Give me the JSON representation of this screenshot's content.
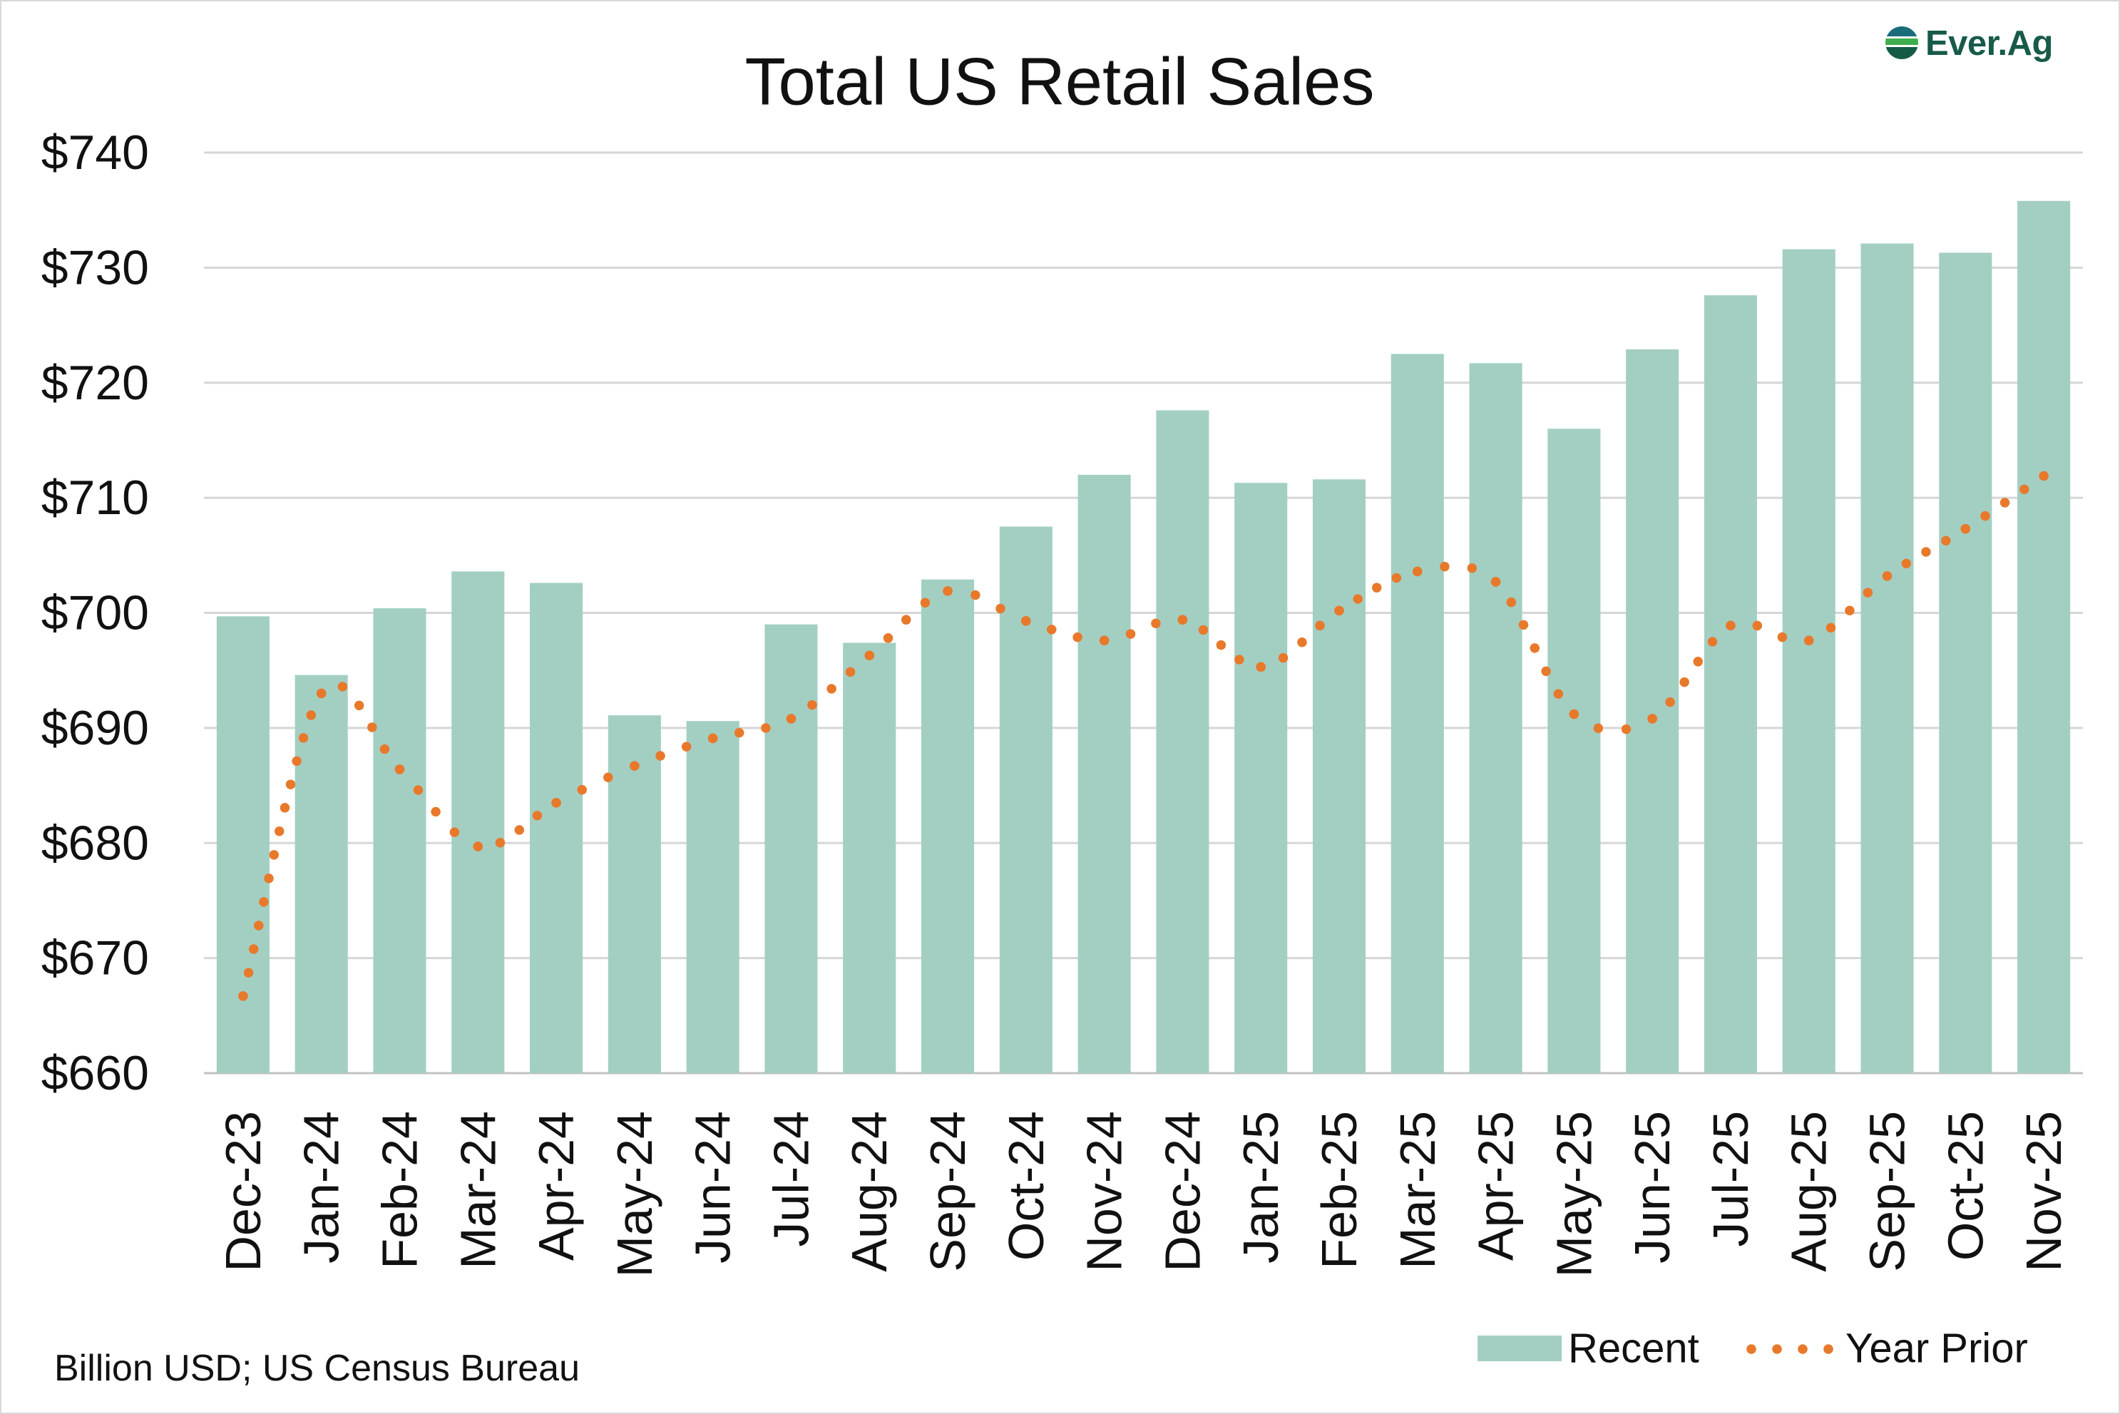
{
  "logo": {
    "text": "Ever.Ag",
    "icon": "ever-ag-logo-icon",
    "color": "#175a4a"
  },
  "footer": {
    "note": "Billion USD; US Census Bureau"
  },
  "chart_data": {
    "type": "bar",
    "title": "Total US Retail Sales",
    "categories": [
      "Dec-23",
      "Jan-24",
      "Feb-24",
      "Mar-24",
      "Apr-24",
      "May-24",
      "Jun-24",
      "Jul-24",
      "Aug-24",
      "Sep-24",
      "Oct-24",
      "Nov-24",
      "Dec-24",
      "Jan-25",
      "Feb-25",
      "Mar-25",
      "Apr-25",
      "May-25",
      "Jun-25",
      "Jul-25",
      "Aug-25",
      "Sep-25",
      "Oct-25",
      "Nov-25"
    ],
    "series": [
      {
        "name": "Recent",
        "type": "bar",
        "color": "#a3cfc3",
        "values": [
          699.7,
          694.6,
          700.4,
          703.6,
          702.6,
          691.1,
          690.6,
          699.0,
          697.4,
          702.9,
          707.5,
          712.0,
          717.6,
          711.3,
          711.6,
          722.5,
          721.7,
          716.0,
          722.9,
          727.6,
          731.6,
          732.1,
          731.3,
          735.8
        ]
      },
      {
        "name": "Year Prior",
        "type": "line",
        "style": "dotted-smoothed",
        "color": "#e8792b",
        "values": [
          666.7,
          693.0,
          686.4,
          679.7,
          683.5,
          686.7,
          689.1,
          690.8,
          696.3,
          701.9,
          699.3,
          697.6,
          699.4,
          695.3,
          700.2,
          703.6,
          702.7,
          691.2,
          690.8,
          698.9,
          697.6,
          703.2,
          707.3,
          711.9
        ]
      }
    ],
    "ylim": [
      660,
      740
    ],
    "yticks": [
      660,
      670,
      680,
      690,
      700,
      710,
      720,
      730,
      740
    ],
    "ytick_labels": [
      "$660",
      "$670",
      "$680",
      "$690",
      "$700",
      "$710",
      "$720",
      "$730",
      "$740"
    ],
    "grid": "horizontal",
    "legend": {
      "position": "bottom-right"
    }
  }
}
